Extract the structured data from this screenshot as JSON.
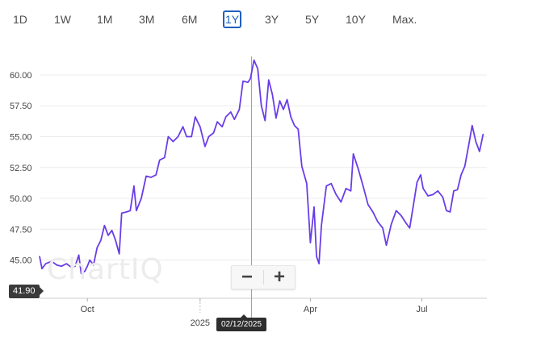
{
  "range_buttons": [
    {
      "label": "1D",
      "active": false
    },
    {
      "label": "1W",
      "active": false
    },
    {
      "label": "1M",
      "active": false
    },
    {
      "label": "3M",
      "active": false
    },
    {
      "label": "6M",
      "active": false
    },
    {
      "label": "1Y",
      "active": true
    },
    {
      "label": "3Y",
      "active": false
    },
    {
      "label": "5Y",
      "active": false
    },
    {
      "label": "10Y",
      "active": false
    },
    {
      "label": "Max.",
      "active": false
    }
  ],
  "zoom": {
    "out_label": "−",
    "in_label": "+"
  },
  "watermark": "ChartIQ",
  "crosshair": {
    "date_label": "02/12/2025",
    "price_label": "41.90"
  },
  "colors": {
    "line": "#6a3de8",
    "grid": "#ececec",
    "axis_text": "#444444"
  },
  "chart_data": {
    "type": "line",
    "ylim": [
      41.9,
      61.5
    ],
    "y_ticks": [
      45.0,
      47.5,
      50.0,
      52.5,
      55.0,
      57.5,
      60.0
    ],
    "y_tick_labels": [
      "45.00",
      "47.50",
      "50.00",
      "52.50",
      "55.00",
      "57.50",
      "60.00"
    ],
    "x_range": [
      "2024-08-23",
      "2025-08-23"
    ],
    "x_ticks": [
      {
        "date": "2024-10-01",
        "label": "Oct"
      },
      {
        "date": "2025-01-01",
        "label": "2025"
      },
      {
        "date": "2025-04-01",
        "label": "Apr"
      },
      {
        "date": "2025-07-01",
        "label": "Jul"
      }
    ],
    "crosshair_x": "2025-02-12",
    "series": [
      {
        "points": [
          [
            "2024-08-23",
            45.3
          ],
          [
            "2024-08-25",
            44.3
          ],
          [
            "2024-08-28",
            44.7
          ],
          [
            "2024-09-02",
            44.9
          ],
          [
            "2024-09-06",
            44.6
          ],
          [
            "2024-09-10",
            44.5
          ],
          [
            "2024-09-14",
            44.7
          ],
          [
            "2024-09-18",
            44.4
          ],
          [
            "2024-09-21",
            44.5
          ],
          [
            "2024-09-24",
            45.4
          ],
          [
            "2024-09-26",
            43.9
          ],
          [
            "2024-09-29",
            44.1
          ],
          [
            "2024-10-01",
            44.5
          ],
          [
            "2024-10-03",
            45.0
          ],
          [
            "2024-10-06",
            44.6
          ],
          [
            "2024-10-09",
            46.0
          ],
          [
            "2024-10-12",
            46.6
          ],
          [
            "2024-10-15",
            47.8
          ],
          [
            "2024-10-18",
            47.0
          ],
          [
            "2024-10-21",
            47.4
          ],
          [
            "2024-10-24",
            46.6
          ],
          [
            "2024-10-27",
            45.5
          ],
          [
            "2024-10-29",
            48.8
          ],
          [
            "2024-11-02",
            48.9
          ],
          [
            "2024-11-05",
            49.0
          ],
          [
            "2024-11-08",
            51.0
          ],
          [
            "2024-11-10",
            49.0
          ],
          [
            "2024-11-14",
            50.0
          ],
          [
            "2024-11-18",
            51.8
          ],
          [
            "2024-11-22",
            51.7
          ],
          [
            "2024-11-26",
            51.9
          ],
          [
            "2024-11-29",
            53.1
          ],
          [
            "2024-12-03",
            53.3
          ],
          [
            "2024-12-06",
            55.0
          ],
          [
            "2024-12-10",
            54.6
          ],
          [
            "2024-12-14",
            55.0
          ],
          [
            "2024-12-18",
            55.8
          ],
          [
            "2024-12-21",
            55.0
          ],
          [
            "2024-12-25",
            55.0
          ],
          [
            "2024-12-28",
            56.6
          ],
          [
            "2025-01-01",
            55.8
          ],
          [
            "2025-01-05",
            54.2
          ],
          [
            "2025-01-08",
            55.0
          ],
          [
            "2025-01-12",
            55.3
          ],
          [
            "2025-01-15",
            56.2
          ],
          [
            "2025-01-19",
            55.8
          ],
          [
            "2025-01-22",
            56.6
          ],
          [
            "2025-01-26",
            57.0
          ],
          [
            "2025-01-29",
            56.4
          ],
          [
            "2025-02-02",
            57.2
          ],
          [
            "2025-02-05",
            59.5
          ],
          [
            "2025-02-09",
            59.4
          ],
          [
            "2025-02-11",
            59.7
          ],
          [
            "2025-02-14",
            61.2
          ],
          [
            "2025-02-17",
            60.5
          ],
          [
            "2025-02-20",
            57.5
          ],
          [
            "2025-02-23",
            56.3
          ],
          [
            "2025-02-26",
            59.6
          ],
          [
            "2025-03-01",
            58.4
          ],
          [
            "2025-03-04",
            56.5
          ],
          [
            "2025-03-07",
            57.9
          ],
          [
            "2025-03-10",
            57.2
          ],
          [
            "2025-03-13",
            58.0
          ],
          [
            "2025-03-16",
            56.6
          ],
          [
            "2025-03-19",
            55.9
          ],
          [
            "2025-03-22",
            55.6
          ],
          [
            "2025-03-25",
            52.6
          ],
          [
            "2025-03-29",
            51.2
          ],
          [
            "2025-04-01",
            46.4
          ],
          [
            "2025-04-04",
            49.3
          ],
          [
            "2025-04-06",
            45.3
          ],
          [
            "2025-04-08",
            44.7
          ],
          [
            "2025-04-10",
            47.8
          ],
          [
            "2025-04-14",
            51.0
          ],
          [
            "2025-04-18",
            51.2
          ],
          [
            "2025-04-22",
            50.3
          ],
          [
            "2025-04-26",
            49.7
          ],
          [
            "2025-04-30",
            50.8
          ],
          [
            "2025-05-04",
            50.6
          ],
          [
            "2025-05-06",
            53.6
          ],
          [
            "2025-05-10",
            52.4
          ],
          [
            "2025-05-14",
            51.0
          ],
          [
            "2025-05-18",
            49.5
          ],
          [
            "2025-05-22",
            48.9
          ],
          [
            "2025-05-26",
            48.1
          ],
          [
            "2025-05-30",
            47.6
          ],
          [
            "2025-06-02",
            46.2
          ],
          [
            "2025-06-06",
            47.9
          ],
          [
            "2025-06-10",
            49.0
          ],
          [
            "2025-06-14",
            48.6
          ],
          [
            "2025-06-18",
            48.0
          ],
          [
            "2025-06-21",
            47.6
          ],
          [
            "2025-06-24",
            49.4
          ],
          [
            "2025-06-27",
            51.3
          ],
          [
            "2025-06-30",
            51.9
          ],
          [
            "2025-07-02",
            50.8
          ],
          [
            "2025-07-06",
            50.2
          ],
          [
            "2025-07-10",
            50.3
          ],
          [
            "2025-07-14",
            50.6
          ],
          [
            "2025-07-18",
            50.1
          ],
          [
            "2025-07-21",
            49.0
          ],
          [
            "2025-07-24",
            48.9
          ],
          [
            "2025-07-27",
            50.6
          ],
          [
            "2025-07-30",
            50.7
          ],
          [
            "2025-08-02",
            51.9
          ],
          [
            "2025-08-05",
            52.6
          ],
          [
            "2025-08-08",
            54.2
          ],
          [
            "2025-08-11",
            55.9
          ],
          [
            "2025-08-14",
            54.6
          ],
          [
            "2025-08-17",
            53.8
          ],
          [
            "2025-08-20",
            55.2
          ]
        ]
      }
    ]
  }
}
